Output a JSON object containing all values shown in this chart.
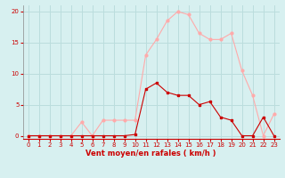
{
  "x": [
    0,
    1,
    2,
    3,
    4,
    5,
    6,
    7,
    8,
    9,
    10,
    11,
    12,
    13,
    14,
    15,
    16,
    17,
    18,
    19,
    20,
    21,
    22,
    23
  ],
  "rafales": [
    0,
    0,
    0,
    0,
    0,
    2.2,
    0,
    2.5,
    2.5,
    2.5,
    2.5,
    13,
    15.5,
    18.5,
    20,
    19.5,
    16.5,
    15.5,
    15.5,
    16.5,
    10.5,
    6.5,
    0,
    3.5
  ],
  "moyen": [
    0,
    0,
    0,
    0,
    0,
    0,
    0,
    0,
    0,
    0,
    0.2,
    7.5,
    8.5,
    7,
    6.5,
    6.5,
    5,
    5.5,
    3,
    2.5,
    0,
    0,
    3,
    0
  ],
  "line_color_rafales": "#ffaaaa",
  "line_color_moyen": "#cc0000",
  "marker_color_rafales": "#ffaaaa",
  "marker_color_moyen": "#cc0000",
  "bg_color": "#d7f0f0",
  "grid_color": "#bbdddd",
  "xlabel": "Vent moyen/en rafales ( km/h )",
  "xlabel_color": "#cc0000",
  "tick_color": "#cc0000",
  "ylim": [
    -0.5,
    21
  ],
  "yticks": [
    0,
    5,
    10,
    15,
    20
  ],
  "xlim": [
    -0.5,
    23.5
  ]
}
